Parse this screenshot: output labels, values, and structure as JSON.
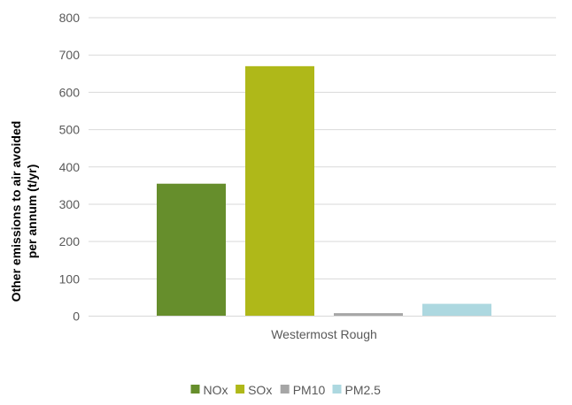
{
  "chart_data": {
    "type": "bar",
    "categories": [
      "Westermost Rough"
    ],
    "series": [
      {
        "name": "NOx",
        "values": [
          355
        ],
        "color": "#668E2C"
      },
      {
        "name": "SOx",
        "values": [
          670
        ],
        "color": "#AFB819"
      },
      {
        "name": "PM10",
        "values": [
          8
        ],
        "color": "#A6A6A6"
      },
      {
        "name": "PM2.5",
        "values": [
          33
        ],
        "color": "#ADD8E0"
      }
    ],
    "title": "",
    "xlabel": "",
    "ylabel_lines": [
      "Other emissions to air avoided",
      "per annum (t/yr)"
    ],
    "ylim": [
      0,
      800
    ],
    "yticks": [
      0,
      100,
      200,
      300,
      400,
      500,
      600,
      700,
      800
    ],
    "grid": true,
    "legend_position": "bottom"
  }
}
